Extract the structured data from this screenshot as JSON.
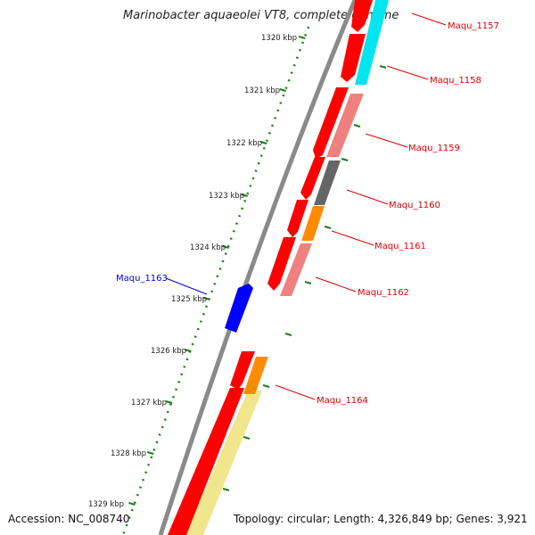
{
  "title": "Marinobacter aquaeolei VT8, complete genome",
  "accession": "Accession: NC_008740",
  "topology": "Topology: circular; Length: 4,326,849 bp; Genes: 3,921",
  "colors": {
    "backbone": "#8a8a8a",
    "tick": "#1a7f1a",
    "cds_red": "#ff0000",
    "light_red": "#f08080",
    "cyan": "#00e5ee",
    "gray": "#666666",
    "orange": "#ff8c00",
    "blue": "#0000ff",
    "khaki": "#f0e68c",
    "label_red": "#e00000",
    "label_blue": "#0000cc"
  },
  "scale_ticks": [
    "1320 kbp",
    "1321 kbp",
    "1322 kbp",
    "1323 kbp",
    "1324 kbp",
    "1325 kbp",
    "1326 kbp",
    "1327 kbp",
    "1328 kbp",
    "1329 kbp"
  ],
  "gene_labels": [
    {
      "id": "Maqu_1157",
      "color": "red"
    },
    {
      "id": "Maqu_1158",
      "color": "red"
    },
    {
      "id": "Maqu_1159",
      "color": "red"
    },
    {
      "id": "Maqu_1160",
      "color": "red"
    },
    {
      "id": "Maqu_1161",
      "color": "red"
    },
    {
      "id": "Maqu_1162",
      "color": "red"
    },
    {
      "id": "Maqu_1163",
      "color": "blue"
    },
    {
      "id": "Maqu_1164",
      "color": "red"
    }
  ]
}
